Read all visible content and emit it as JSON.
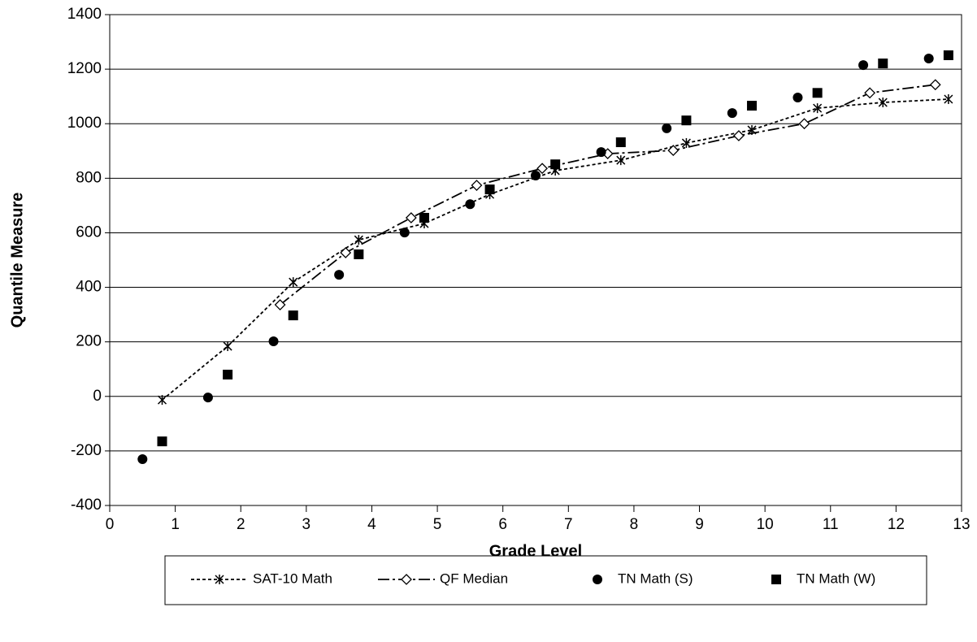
{
  "chart_data": {
    "type": "line",
    "x_label": "Grade Level",
    "y_label": "Quantile Measure",
    "xlim": [
      0,
      13
    ],
    "xticks": [
      0,
      1,
      2,
      3,
      4,
      5,
      6,
      7,
      8,
      9,
      10,
      11,
      12,
      13
    ],
    "ylim": [
      -400,
      1400
    ],
    "yticks": [
      -400,
      -200,
      0,
      200,
      400,
      600,
      800,
      1000,
      1200,
      1400
    ],
    "grid": true,
    "legend": "bottom",
    "series": [
      {
        "name": "SAT-10 Math",
        "color": "#000000",
        "marker": "asterisk",
        "line": "dotted",
        "x": [
          0.8,
          1.8,
          2.8,
          3.8,
          4.8,
          5.8,
          6.8,
          7.8,
          8.8,
          9.8,
          10.8,
          11.8,
          12.8
        ],
        "values": [
          -13,
          184,
          419,
          574,
          634,
          741,
          828,
          866,
          929,
          977,
          1057,
          1078,
          1090
        ]
      },
      {
        "name": "QF Median",
        "color": "#000000",
        "marker": "diamond",
        "line": "dashdot",
        "x": [
          2.6,
          3.6,
          4.6,
          5.6,
          6.6,
          7.6,
          8.6,
          9.6,
          10.6,
          11.6,
          12.6
        ],
        "values": [
          336,
          527,
          655,
          774,
          836,
          890,
          902,
          956,
          1000,
          1113,
          1143
        ]
      },
      {
        "name": "TN Math (S)",
        "color": "#000000",
        "marker": "circle",
        "line": "none",
        "x": [
          0.5,
          1.5,
          2.5,
          3.5,
          4.5,
          5.5,
          6.5,
          7.5,
          8.5,
          9.5,
          10.5,
          11.5,
          12.5
        ],
        "values": [
          -230,
          -4,
          202,
          446,
          601,
          705,
          810,
          896,
          983,
          1039,
          1096,
          1215,
          1239
        ]
      },
      {
        "name": "TN Math (W)",
        "color": "#000000",
        "marker": "square",
        "line": "none",
        "x": [
          0.8,
          1.8,
          2.8,
          3.8,
          4.8,
          5.8,
          6.8,
          7.8,
          8.8,
          9.8,
          10.8,
          11.8,
          12.8
        ],
        "values": [
          -165,
          80,
          297,
          521,
          655,
          759,
          851,
          932,
          1012,
          1066,
          1113,
          1221,
          1251
        ]
      }
    ]
  }
}
